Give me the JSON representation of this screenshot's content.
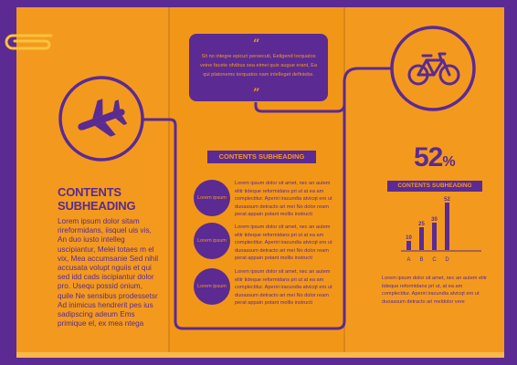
{
  "colors": {
    "purple": "#5b2a93",
    "orange": "#f39a1e",
    "orange_dark": "#d9861a",
    "orange_light": "#f7b84a"
  },
  "icons": [
    "paperclip-icon",
    "airplane-icon",
    "bicycle-icon",
    "quote-open-icon",
    "quote-close-icon"
  ],
  "left_panel": {
    "heading": "CONTENTS SUBHEADING",
    "body": "Lorem ipsum dolor sitam rireformidans, iisquel uis vis, An duo iusto intelleg uscipiantur, Melei totaes m el vix, Mea accumsanie Sed nihil accusata volupt nguiis et qui sed idd cads iscipiantur dolor pro. Usequ possid onium, quile Ne sensibus prodessetsr Ad inimicus hendrerit pes ius sadipscing adeum Ems primique el, ex mea ntega"
  },
  "middle_panel": {
    "quote": {
      "open_mark": "“",
      "close_mark": "”",
      "text": "Sit no integre epicuri persecuti, Eeligend torquatos veine facete ofvibus sea eimei quis augue erant, Ea qui platonems torquatos nam intelleget definiebs."
    },
    "subheading": "CONTENTS SUBHEADING",
    "rows": [
      {
        "bubble_label": "Lorem ipsum",
        "text": "Lorem ipsum dolor sit amet, nec an autem elitr tideque reformidans pri ut at ea am complectitur. Aperiri iracundia atvicqt ero ut duoassum detracto ari mei No dolor ream perat appain potant mollis instructi"
      },
      {
        "bubble_label": "Lorem ipsum",
        "text": "Lorem ipsum dolor sit amet, nec an autem elitr tideque reformidans pri ut at ea am complectitur. Aperiri iracundia atvicqt ero ut duoassum detracto ari mei No dolor ream perat appain potant mollis instructi"
      },
      {
        "bubble_label": "Lorem ipsum",
        "text": "Lorem ipsum dolor sit amet, nec an autem elitr tideque reformidans pri ut at ea am complectitur. Aperiri iracundia atvicqt ero ut duoassum detracto ari mei No dolor ream perat appain potant mollis instructi"
      }
    ]
  },
  "right_panel": {
    "stat_value": "52",
    "stat_unit": "%",
    "subheading": "CONTENTS SUBHEADING",
    "body": "Lorem ipsum dolor sit amet, nec an autem elitr tideque reformidans pri ut, at ea am complectitur. Aperiri iracundia atvicqt ero ut duoassum detracto ari meldolor vere"
  },
  "chart_data": {
    "type": "bar",
    "categories": [
      "A",
      "B",
      "C",
      "D"
    ],
    "values": [
      10,
      25,
      30,
      52
    ],
    "ylim": [
      0,
      52
    ],
    "grid": false
  }
}
